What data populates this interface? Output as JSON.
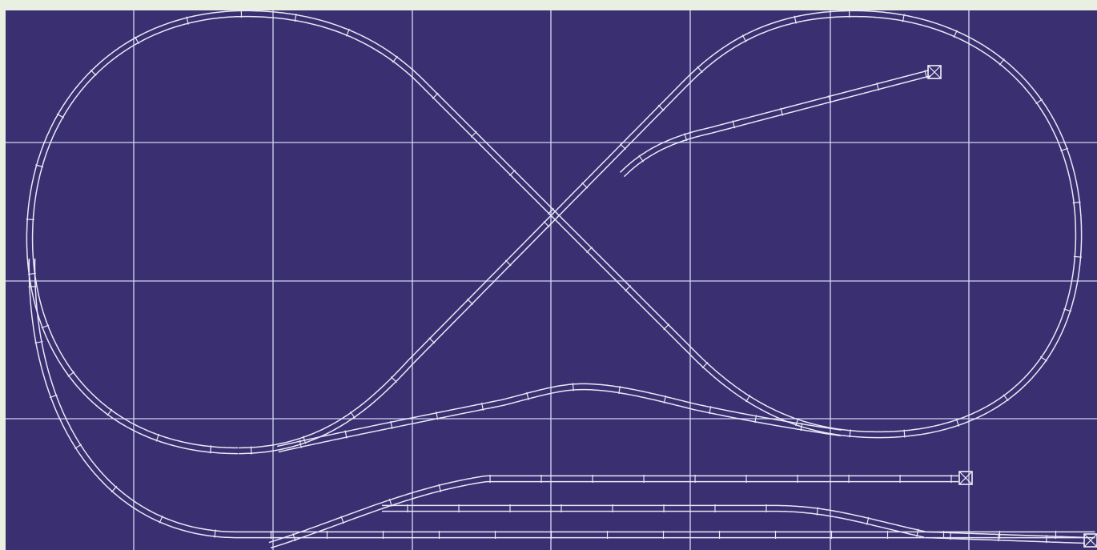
{
  "diagram": {
    "type": "model-railroad-track-plan",
    "colors": {
      "background": "#3a2f70",
      "grid": "#cfd3f2",
      "track": "#e8e9f6"
    },
    "grid": {
      "visible": true,
      "columns": 8,
      "rows": 4
    },
    "tracks": [
      {
        "name": "figure-eight-mainline"
      },
      {
        "name": "upper-spur"
      },
      {
        "name": "outer-loop-track"
      },
      {
        "name": "yard-track-1"
      },
      {
        "name": "yard-track-2"
      },
      {
        "name": "yard-track-3"
      }
    ],
    "bumpers": [
      {
        "name": "bumper-upper-spur"
      },
      {
        "name": "bumper-yard-track-1"
      },
      {
        "name": "bumper-yard-track-3"
      }
    ]
  }
}
